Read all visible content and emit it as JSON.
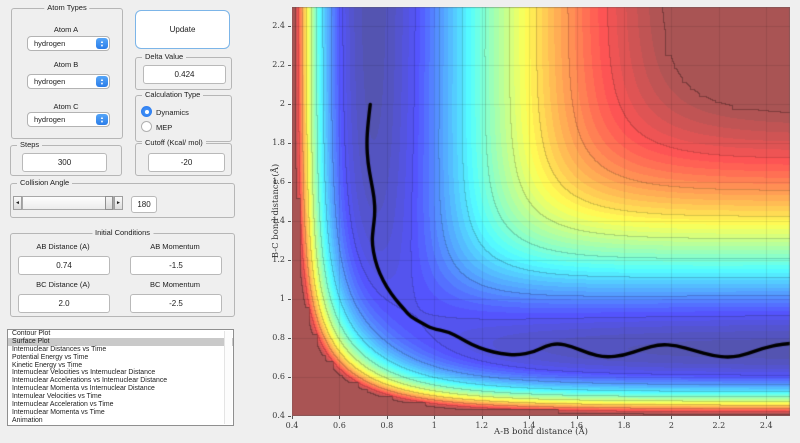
{
  "app": {
    "background": "#efefef"
  },
  "panels": {
    "atom_types": {
      "title": "Atom Types",
      "fields": [
        {
          "label": "Atom A",
          "value": "hydrogen"
        },
        {
          "label": "Atom B",
          "value": "hydrogen"
        },
        {
          "label": "Atom C",
          "value": "hydrogen"
        }
      ]
    },
    "update_button": {
      "label": "Update"
    },
    "delta_value": {
      "title": "Delta Value",
      "value": "0.424"
    },
    "calculation_type": {
      "title": "Calculation Type",
      "options": [
        {
          "label": "Dynamics",
          "selected": true
        },
        {
          "label": "MEP",
          "selected": false
        }
      ]
    },
    "steps": {
      "title": "Steps",
      "value": "300"
    },
    "cutoff": {
      "title": "Cutoff (Kcal/ mol)",
      "value": "-20"
    },
    "collision_angle": {
      "title": "Collision Angle",
      "value": "180"
    },
    "initial_conditions": {
      "title": "Initial Conditions",
      "fields": [
        {
          "label": "AB Distance (A)",
          "value": "0.74"
        },
        {
          "label": "AB Momentum",
          "value": "-1.5"
        },
        {
          "label": "BC Distance (A)",
          "value": "2.0"
        },
        {
          "label": "BC Momentum",
          "value": "-2.5"
        }
      ]
    },
    "plot_list": {
      "selected_index": 1,
      "items": [
        "Contour Plot",
        "Surface Plot",
        "Internuclear Distances vs Time",
        "Potential Energy vs Time",
        "Kinetic Energy vs Time",
        "Internuclear Velocities vs Internuclear Distance",
        "Internuclear Accelerations vs Internuclear Distance",
        "Internuclear Momenta vs Internuclear Distance",
        "Internulear Velocities vs Time",
        "Internuclear Acceleration vs Time",
        "Internuclear Momenta vs Time",
        "Animation"
      ]
    }
  },
  "chart_data": {
    "type": "heatmap",
    "subtype": "filled-contour-with-trajectory",
    "title": "",
    "xlabel": "A-B bond distance (Å)",
    "ylabel": "B-C bond distance (Å)",
    "xlim": [
      0.4,
      2.5
    ],
    "ylim": [
      0.4,
      2.5
    ],
    "xticks": [
      0.4,
      0.6,
      0.8,
      1,
      1.2,
      1.4,
      1.6,
      1.8,
      2,
      2.2,
      2.4
    ],
    "xtick_labels": [
      "0.4",
      "0.6",
      "0.8",
      "1",
      "1.2",
      "1.4",
      "1.6",
      "1.8",
      "2",
      "2.2",
      "2.4"
    ],
    "yticks": [
      0.4,
      0.6,
      0.8,
      1,
      1.2,
      1.4,
      1.6,
      1.8,
      2,
      2.2,
      2.4
    ],
    "ytick_labels": [
      "0.4",
      "0.6",
      "0.8",
      "1",
      "1.2",
      "1.4",
      "1.6",
      "1.8",
      "2",
      "2.2",
      "2.4"
    ],
    "grid": true,
    "colormap": "jet-lightened",
    "surface": {
      "model": "LEPS-H3-collinear",
      "D_kcal": 109.4,
      "beta": 1.942,
      "re": 0.7419,
      "sato": 0.1386,
      "v_min": -110,
      "v_cutoff": -20,
      "fill_level_step": 2,
      "line_level_step": 10,
      "clip_grid_cells": 60
    },
    "trajectory": {
      "color": "#000000",
      "width": 3.4,
      "points": [
        [
          0.73,
          2.0
        ],
        [
          0.72,
          1.9
        ],
        [
          0.715,
          1.8
        ],
        [
          0.72,
          1.7
        ],
        [
          0.733,
          1.61
        ],
        [
          0.747,
          1.52
        ],
        [
          0.75,
          1.44
        ],
        [
          0.742,
          1.36
        ],
        [
          0.737,
          1.29
        ],
        [
          0.75,
          1.2
        ],
        [
          0.77,
          1.13
        ],
        [
          0.8,
          1.06
        ],
        [
          0.835,
          1.0
        ],
        [
          0.875,
          0.945
        ],
        [
          0.9,
          0.91
        ],
        [
          0.95,
          0.875
        ],
        [
          0.99,
          0.85
        ],
        [
          1.06,
          0.832
        ],
        [
          1.11,
          0.8
        ],
        [
          1.16,
          0.765
        ],
        [
          1.22,
          0.737
        ],
        [
          1.28,
          0.72
        ],
        [
          1.35,
          0.712
        ],
        [
          1.42,
          0.728
        ],
        [
          1.47,
          0.76
        ],
        [
          1.52,
          0.773
        ],
        [
          1.58,
          0.757
        ],
        [
          1.65,
          0.722
        ],
        [
          1.72,
          0.7
        ],
        [
          1.8,
          0.712
        ],
        [
          1.88,
          0.745
        ],
        [
          1.95,
          0.768
        ],
        [
          2.02,
          0.762
        ],
        [
          2.1,
          0.735
        ],
        [
          2.17,
          0.71
        ],
        [
          2.25,
          0.7
        ],
        [
          2.32,
          0.718
        ],
        [
          2.39,
          0.75
        ],
        [
          2.46,
          0.768
        ],
        [
          2.5,
          0.772
        ]
      ]
    }
  }
}
